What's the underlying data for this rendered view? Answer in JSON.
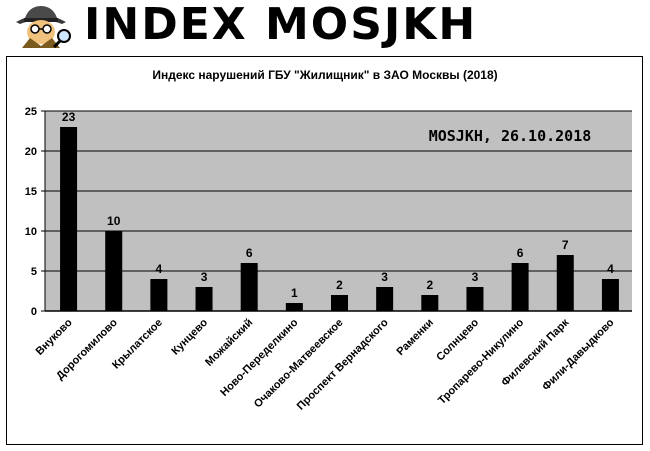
{
  "brand": {
    "title": "INDEX MOSJKH",
    "logo_icon": "spy-detective-icon"
  },
  "chart_data": {
    "type": "bar",
    "title": "Индекс нарушений ГБУ \"Жилищник\" в ЗАО Москвы (2018)",
    "watermark": "MOSJKH, 26.10.2018",
    "categories": [
      "Внуково",
      "Дорогомилово",
      "Крылатское",
      "Кунцево",
      "Можайский",
      "Ново-Переделкино",
      "Очаково-Матвеевское",
      "Проспект Вернадского",
      "Раменки",
      "Солнцево",
      "Тропарево-Никулино",
      "Филевский Парк",
      "Фили-Давыдково"
    ],
    "values": [
      23,
      10,
      4,
      3,
      6,
      1,
      2,
      3,
      2,
      3,
      6,
      7,
      4
    ],
    "yticks": [
      "0",
      "5",
      "10",
      "15",
      "20",
      "25"
    ],
    "ylim": [
      0,
      25
    ],
    "grid": true,
    "colors": {
      "bar": "#000000",
      "plot_bg": "#c0c0c0",
      "gridline": "#000000"
    }
  }
}
